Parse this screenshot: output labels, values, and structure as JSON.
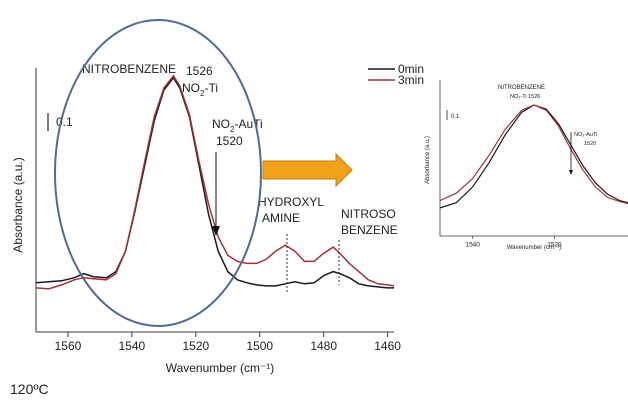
{
  "colors": {
    "series_0min": "#1a1a1a",
    "series_3min": "#a0343a",
    "ellipse": "#4d6d93",
    "arrow_fill": "#f0a21a",
    "arrow_stroke": "#c97d08",
    "axis": "#3a3a3a"
  },
  "temperature": "120ºC",
  "chart_data": [
    {
      "type": "line",
      "xlabel": "Wavenumber (cm⁻¹)",
      "ylabel": "Absorbance (a.u.)",
      "xlim": [
        1570,
        1458
      ],
      "x_reversed": true,
      "xticks": [
        "1560",
        "1540",
        "1520",
        "1500",
        "1480",
        "1460"
      ],
      "scale_bar": "0.1",
      "legend": [
        "0min",
        "3min"
      ],
      "legend_position": "top-right",
      "series": [
        {
          "name": "0min",
          "x": [
            1570,
            1566,
            1562,
            1558,
            1555,
            1552,
            1548,
            1545,
            1542,
            1539,
            1536,
            1533,
            1530,
            1527,
            1525,
            1522,
            1519,
            1516,
            1513,
            1510,
            1507,
            1504,
            1501,
            1498,
            1495,
            1492,
            1489,
            1486,
            1483,
            1480,
            1477,
            1475,
            1472,
            1469,
            1466,
            1463,
            1460,
            1458
          ],
          "y": [
            0.045,
            0.05,
            0.055,
            0.07,
            0.09,
            0.075,
            0.07,
            0.1,
            0.2,
            0.4,
            0.62,
            0.84,
            0.99,
            1.05,
            1.0,
            0.86,
            0.62,
            0.38,
            0.2,
            0.1,
            0.06,
            0.045,
            0.035,
            0.03,
            0.03,
            0.04,
            0.05,
            0.04,
            0.045,
            0.08,
            0.1,
            0.09,
            0.07,
            0.04,
            0.03,
            0.025,
            0.02,
            0.02
          ]
        },
        {
          "name": "3min",
          "x": [
            1570,
            1566,
            1562,
            1558,
            1555,
            1552,
            1548,
            1545,
            1542,
            1539,
            1536,
            1533,
            1530,
            1527,
            1525,
            1522,
            1519,
            1516,
            1513,
            1510,
            1507,
            1504,
            1501,
            1498,
            1495,
            1492,
            1489,
            1486,
            1483,
            1480,
            1477,
            1475,
            1472,
            1469,
            1466,
            1463,
            1460,
            1458
          ],
          "y": [
            0.02,
            0.015,
            0.035,
            0.06,
            0.07,
            0.065,
            0.06,
            0.09,
            0.2,
            0.41,
            0.64,
            0.86,
            1.0,
            1.06,
            1.01,
            0.87,
            0.64,
            0.43,
            0.27,
            0.18,
            0.15,
            0.14,
            0.14,
            0.16,
            0.2,
            0.23,
            0.2,
            0.15,
            0.15,
            0.19,
            0.22,
            0.19,
            0.14,
            0.1,
            0.06,
            0.04,
            0.035,
            0.03
          ]
        }
      ],
      "annotations": {
        "nitrobenzene": "NITROBENZENE",
        "no2ti_wn": "1526",
        "no2ti_a": "NO",
        "no2ti_b": "-Ti",
        "no2auti_a": "NO",
        "no2auti_b": "-AuTi",
        "no2auti_wn": "1520",
        "hydroxyl_1": "HYDROXYL",
        "hydroxyl_2": "AMINE",
        "nitroso_1": "NITROSO",
        "nitroso_2": "BENZENE"
      }
    },
    {
      "type": "line",
      "inset": true,
      "xlabel": "Wavenumber (cm⁻¹)",
      "ylabel": "Absorbance (a.u.)",
      "xlim": [
        1548,
        1502
      ],
      "x_reversed": true,
      "xticks": [
        "1540",
        "1520",
        "15"
      ],
      "scale_bar": "0.1",
      "series": [
        {
          "name": "0min",
          "x": [
            1548,
            1544,
            1540,
            1536,
            1532,
            1528,
            1525,
            1522,
            1519,
            1516,
            1513,
            1510,
            1507,
            1504,
            1502
          ],
          "y": [
            0.02,
            0.07,
            0.22,
            0.45,
            0.72,
            0.93,
            1.0,
            0.96,
            0.82,
            0.62,
            0.42,
            0.26,
            0.15,
            0.09,
            0.07
          ]
        },
        {
          "name": "3min",
          "x": [
            1548,
            1544,
            1540,
            1536,
            1532,
            1528,
            1525,
            1522,
            1519,
            1516,
            1513,
            1510,
            1507,
            1504,
            1502
          ],
          "y": [
            0.09,
            0.16,
            0.3,
            0.52,
            0.77,
            0.95,
            1.0,
            0.95,
            0.8,
            0.58,
            0.38,
            0.22,
            0.12,
            0.08,
            0.06
          ]
        }
      ],
      "annotations": {
        "nitrobenzene": "NITROBENZENE",
        "no2ti": "NO₂-Ti  1526",
        "no2auti": "NO₂-AuTi",
        "no2auti_wn": "1520"
      }
    }
  ]
}
